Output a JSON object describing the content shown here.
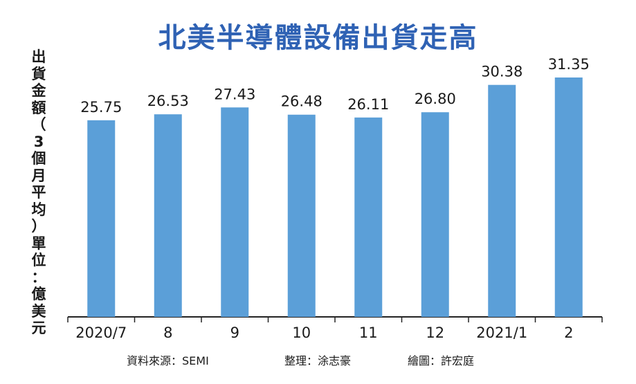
{
  "chart_data": {
    "type": "bar",
    "title": "北美半導體設備出貨走高",
    "ylabel": "出貨金額（3個月平均）單位：億美元",
    "xlabel": "",
    "categories": [
      "2020/7",
      "8",
      "9",
      "10",
      "11",
      "12",
      "2021/1",
      "2"
    ],
    "values": [
      25.75,
      26.53,
      27.43,
      26.48,
      26.11,
      26.8,
      30.38,
      31.35
    ],
    "value_labels": [
      "25.75",
      "26.53",
      "27.43",
      "26.48",
      "26.11",
      "26.80",
      "30.38",
      "31.35"
    ],
    "ylim": [
      0,
      31.35
    ],
    "grid": false,
    "bar_color": "#5b9fd8"
  },
  "footer": {
    "source": "資料來源：SEMI",
    "editor": "整理：涂志豪",
    "illustrator": "繪圖：許宏庭"
  }
}
